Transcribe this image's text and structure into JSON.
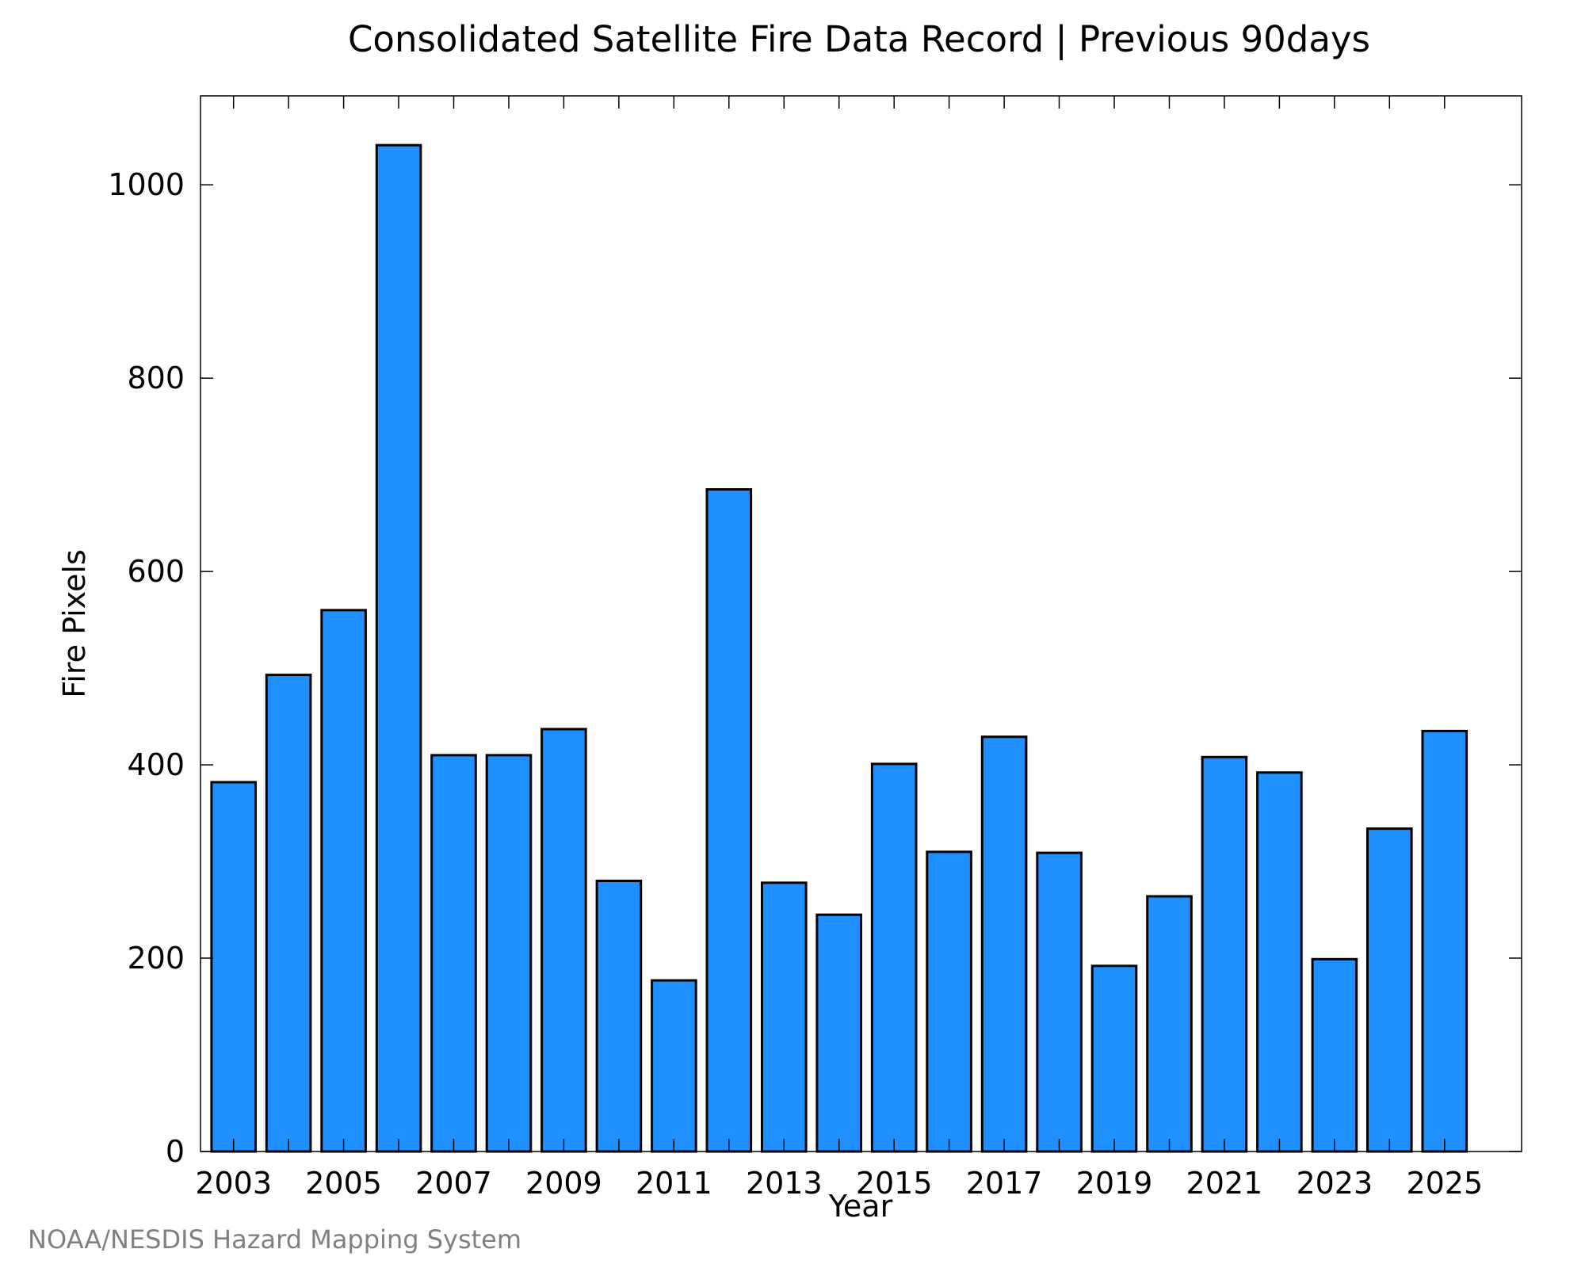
{
  "footer": "NOAA/NESDIS Hazard Mapping System",
  "chart_data": {
    "type": "bar",
    "title": "Consolidated Satellite Fire Data Record | Previous 90days",
    "xlabel": "Year",
    "ylabel": "Fire Pixels",
    "categories": [
      "2003",
      "2004",
      "2005",
      "2006",
      "2007",
      "2008",
      "2009",
      "2010",
      "2011",
      "2012",
      "2013",
      "2014",
      "2015",
      "2016",
      "2017",
      "2018",
      "2019",
      "2020",
      "2021",
      "2022",
      "2023",
      "2024",
      "2025"
    ],
    "values": [
      382,
      493,
      560,
      1041,
      410,
      410,
      437,
      280,
      177,
      685,
      278,
      245,
      401,
      310,
      429,
      309,
      192,
      264,
      408,
      392,
      199,
      334,
      435
    ],
    "x_tick_labels": [
      "2003",
      "2005",
      "2007",
      "2009",
      "2011",
      "2013",
      "2015",
      "2017",
      "2019",
      "2021",
      "2023",
      "2025"
    ],
    "y_ticks": [
      0,
      200,
      400,
      600,
      800,
      1000
    ],
    "xlim": [
      2002.4,
      2026.4
    ],
    "ylim": [
      0,
      1092
    ],
    "bar_color": "#1e90ff",
    "grid": false,
    "legend": "none"
  }
}
